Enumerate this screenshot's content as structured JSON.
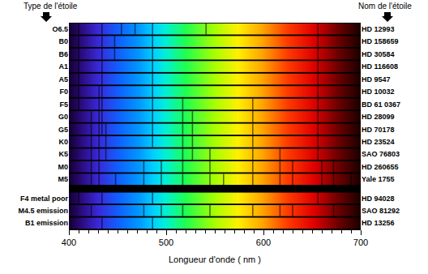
{
  "chart_data": {
    "type": "spectrum",
    "annotations": [
      "Type de l'étoile",
      "Nom de l'étoile"
    ],
    "xlabel": "Longueur d'onde ( nm )",
    "xlim": [
      400,
      700
    ],
    "xticks": [
      400,
      500,
      600,
      700
    ],
    "grid": false,
    "categories": [
      "O6.5",
      "B0",
      "B6",
      "A1",
      "A5",
      "F0",
      "F5",
      "G0",
      "G5",
      "K0",
      "K5",
      "M0",
      "M5",
      "F4 metal poor",
      "M4.5 emission",
      "B1 emission"
    ],
    "names": [
      "HD 12993",
      "HD 158659",
      "HD 30584",
      "HD 116608",
      "HD 9547",
      "HD 10032",
      "BD 61 0367",
      "HD 28099",
      "HD 70178",
      "HD 23524",
      "SAO 76803",
      "HD 260655",
      "Yale 1755",
      "HD 94028",
      "SAO 81292",
      "HD 13256"
    ],
    "lines": [
      [
        410,
        434,
        454,
        468,
        486,
        541,
        656
      ],
      [
        410,
        434,
        447,
        486,
        656
      ],
      [
        410,
        434,
        447,
        486,
        656
      ],
      [
        410,
        434,
        486,
        656
      ],
      [
        410,
        434,
        486,
        656
      ],
      [
        410,
        431,
        434,
        486,
        656
      ],
      [
        410,
        431,
        434,
        486,
        517,
        589,
        656
      ],
      [
        423,
        431,
        434,
        486,
        517,
        527,
        589,
        656
      ],
      [
        423,
        431,
        434,
        438,
        486,
        517,
        527,
        589,
        656
      ],
      [
        423,
        431,
        438,
        486,
        517,
        527,
        589,
        656
      ],
      [
        423,
        431,
        438,
        517,
        527,
        545,
        589,
        617,
        656
      ],
      [
        423,
        431,
        477,
        495,
        517,
        545,
        589,
        617,
        630,
        660,
        672
      ],
      [
        423,
        431,
        448,
        477,
        495,
        517,
        545,
        559,
        589,
        617,
        630,
        660,
        672,
        690
      ],
      [
        410,
        434,
        486,
        656
      ],
      [
        423,
        477,
        495,
        517,
        545,
        589,
        617,
        630,
        672
      ],
      [
        434,
        486
      ]
    ]
  }
}
